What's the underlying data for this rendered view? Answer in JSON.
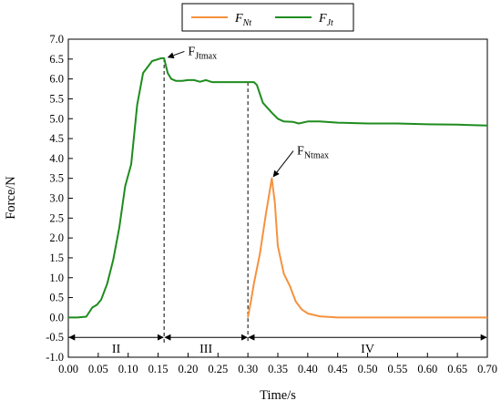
{
  "chart_data": {
    "type": "line",
    "title": "",
    "xlabel": "Time/s",
    "ylabel": "Force/N",
    "xlim": [
      0.0,
      0.7
    ],
    "ylim": [
      -1.0,
      7.0
    ],
    "x_ticks": [
      "0.00",
      "0.05",
      "0.10",
      "0.15",
      "0.20",
      "0.25",
      "0.30",
      "0.35",
      "0.40",
      "0.45",
      "0.50",
      "0.55",
      "0.60",
      "0.65",
      "0.70"
    ],
    "y_ticks": [
      "-1.0",
      "-0.5",
      "0.0",
      "0.5",
      "1.0",
      "1.5",
      "2.0",
      "2.5",
      "3.0",
      "3.5",
      "4.0",
      "4.5",
      "5.0",
      "5.5",
      "6.0",
      "6.5",
      "7.0"
    ],
    "grid": false,
    "legend": {
      "placement": "top"
    },
    "series": [
      {
        "name_main": "F",
        "name_sub": "Nt",
        "color": "#F5923E",
        "points": [
          [
            0.3,
            0.0
          ],
          [
            0.305,
            0.4
          ],
          [
            0.31,
            0.85
          ],
          [
            0.32,
            1.6
          ],
          [
            0.33,
            2.6
          ],
          [
            0.34,
            3.5
          ],
          [
            0.345,
            2.9
          ],
          [
            0.35,
            1.8
          ],
          [
            0.36,
            1.1
          ],
          [
            0.37,
            0.8
          ],
          [
            0.38,
            0.4
          ],
          [
            0.39,
            0.2
          ],
          [
            0.4,
            0.1
          ],
          [
            0.42,
            0.03
          ],
          [
            0.45,
            0.0
          ],
          [
            0.55,
            0.0
          ],
          [
            0.7,
            0.0
          ]
        ]
      },
      {
        "name_main": "F",
        "name_sub": "Jt",
        "color": "#1E8C1E",
        "points": [
          [
            0.0,
            0.0
          ],
          [
            0.015,
            0.0
          ],
          [
            0.03,
            0.02
          ],
          [
            0.04,
            0.25
          ],
          [
            0.048,
            0.32
          ],
          [
            0.055,
            0.45
          ],
          [
            0.065,
            0.85
          ],
          [
            0.075,
            1.45
          ],
          [
            0.085,
            2.25
          ],
          [
            0.095,
            3.3
          ],
          [
            0.105,
            3.85
          ],
          [
            0.115,
            5.35
          ],
          [
            0.125,
            6.15
          ],
          [
            0.14,
            6.45
          ],
          [
            0.155,
            6.52
          ],
          [
            0.16,
            6.52
          ],
          [
            0.166,
            6.15
          ],
          [
            0.172,
            6.0
          ],
          [
            0.18,
            5.95
          ],
          [
            0.19,
            5.95
          ],
          [
            0.2,
            5.97
          ],
          [
            0.21,
            5.97
          ],
          [
            0.22,
            5.93
          ],
          [
            0.23,
            5.97
          ],
          [
            0.24,
            5.92
          ],
          [
            0.26,
            5.92
          ],
          [
            0.28,
            5.92
          ],
          [
            0.3,
            5.92
          ],
          [
            0.31,
            5.92
          ],
          [
            0.315,
            5.85
          ],
          [
            0.325,
            5.4
          ],
          [
            0.34,
            5.15
          ],
          [
            0.35,
            5.0
          ],
          [
            0.36,
            4.93
          ],
          [
            0.375,
            4.92
          ],
          [
            0.385,
            4.88
          ],
          [
            0.4,
            4.93
          ],
          [
            0.42,
            4.93
          ],
          [
            0.45,
            4.9
          ],
          [
            0.5,
            4.88
          ],
          [
            0.55,
            4.88
          ],
          [
            0.6,
            4.86
          ],
          [
            0.65,
            4.85
          ],
          [
            0.7,
            4.83
          ]
        ]
      }
    ],
    "dividers_x": [
      0.16,
      0.3
    ],
    "phases": [
      {
        "label": "II",
        "from": 0.0,
        "to": 0.16
      },
      {
        "label": "III",
        "from": 0.16,
        "to": 0.3
      },
      {
        "label": "IV",
        "from": 0.3,
        "to": 0.7
      }
    ],
    "phase_arrow_y": -0.5,
    "annotations": [
      {
        "main": "F",
        "sub": "Jtmax",
        "point": [
          0.162,
          6.52
        ],
        "text_at": [
          0.2,
          6.6
        ]
      },
      {
        "main": "F",
        "sub": "Ntmax",
        "point": [
          0.338,
          3.52
        ],
        "text_at": [
          0.382,
          4.1
        ]
      }
    ]
  }
}
